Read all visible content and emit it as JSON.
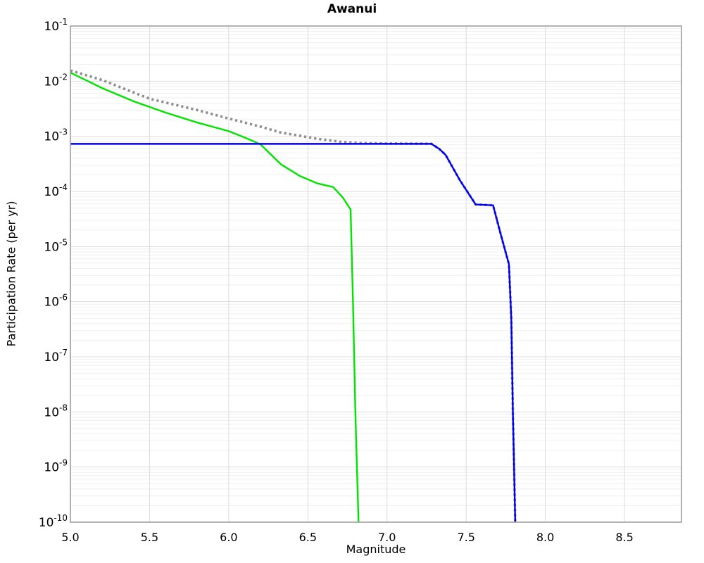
{
  "chart_data": {
    "type": "line",
    "title": "Awanui",
    "xlabel": "Magnitude",
    "ylabel": "Participation Rate (per yr)",
    "xlim": [
      5.0,
      8.86
    ],
    "ylim": [
      1e-10,
      0.1
    ],
    "ylim_exp": [
      -10,
      -1
    ],
    "x_ticks": [
      "5.0",
      "5.5",
      "6.0",
      "6.5",
      "7.0",
      "7.5",
      "8.0",
      "8.5"
    ],
    "y_tick_exps": [
      -1,
      -2,
      -3,
      -4,
      -5,
      -6,
      -7,
      -8,
      -9,
      -10
    ],
    "grid": true,
    "legend": false,
    "colors": {
      "frame": "#9e9e9e",
      "grid_major": "#dcdcdc",
      "grid_minor": "#efefef",
      "text": "#000000"
    },
    "series": [
      {
        "name": "green-solid",
        "style": "solid",
        "color": "#00e400",
        "width": 2.4,
        "points": [
          [
            5.0,
            0.0143
          ],
          [
            5.2,
            0.0075
          ],
          [
            5.4,
            0.0043
          ],
          [
            5.6,
            0.0027
          ],
          [
            5.8,
            0.00178
          ],
          [
            6.0,
            0.00124
          ],
          [
            6.1,
            0.00095
          ],
          [
            6.2,
            0.00072
          ],
          [
            6.33,
            0.00031
          ],
          [
            6.45,
            0.00019
          ],
          [
            6.56,
            0.00014
          ],
          [
            6.66,
            0.00012
          ],
          [
            6.72,
            7.8e-05
          ],
          [
            6.77,
            4.7e-05
          ],
          [
            6.785,
            1e-06
          ],
          [
            6.8,
            1e-08
          ],
          [
            6.82,
            1e-10
          ]
        ]
      },
      {
        "name": "gray-dotted",
        "style": "dotted",
        "color": "#8e8e8e",
        "width": 3.6,
        "points": [
          [
            5.0,
            0.0156
          ],
          [
            5.2,
            0.0105
          ],
          [
            5.5,
            0.0048
          ],
          [
            5.8,
            0.003
          ],
          [
            6.0,
            0.0021
          ],
          [
            6.2,
            0.0015
          ],
          [
            6.33,
            0.00117
          ],
          [
            6.56,
            0.0009
          ],
          [
            6.7,
            0.0008
          ],
          [
            6.84,
            0.00075
          ],
          [
            7.0,
            0.00074
          ],
          [
            7.28,
            0.000735
          ],
          [
            7.33,
            0.00059
          ],
          [
            7.37,
            0.00046
          ],
          [
            7.46,
            0.00016
          ],
          [
            7.56,
            5.8e-05
          ],
          [
            7.67,
            5.6e-05
          ],
          [
            7.72,
            1.6e-05
          ],
          [
            7.77,
            4.8e-06
          ],
          [
            7.785,
            5e-07
          ],
          [
            7.795,
            1e-08
          ],
          [
            7.81,
            1e-10
          ]
        ]
      },
      {
        "name": "blue-solid",
        "style": "solid",
        "color": "#0000f0",
        "width": 2.4,
        "points": [
          [
            5.0,
            0.00073
          ],
          [
            7.28,
            0.00073
          ],
          [
            7.33,
            0.00059
          ],
          [
            7.37,
            0.00046
          ],
          [
            7.46,
            0.00016
          ],
          [
            7.56,
            5.8e-05
          ],
          [
            7.67,
            5.6e-05
          ],
          [
            7.72,
            1.6e-05
          ],
          [
            7.77,
            4.8e-06
          ],
          [
            7.785,
            5e-07
          ],
          [
            7.795,
            1e-08
          ],
          [
            7.81,
            1e-10
          ]
        ]
      }
    ]
  }
}
